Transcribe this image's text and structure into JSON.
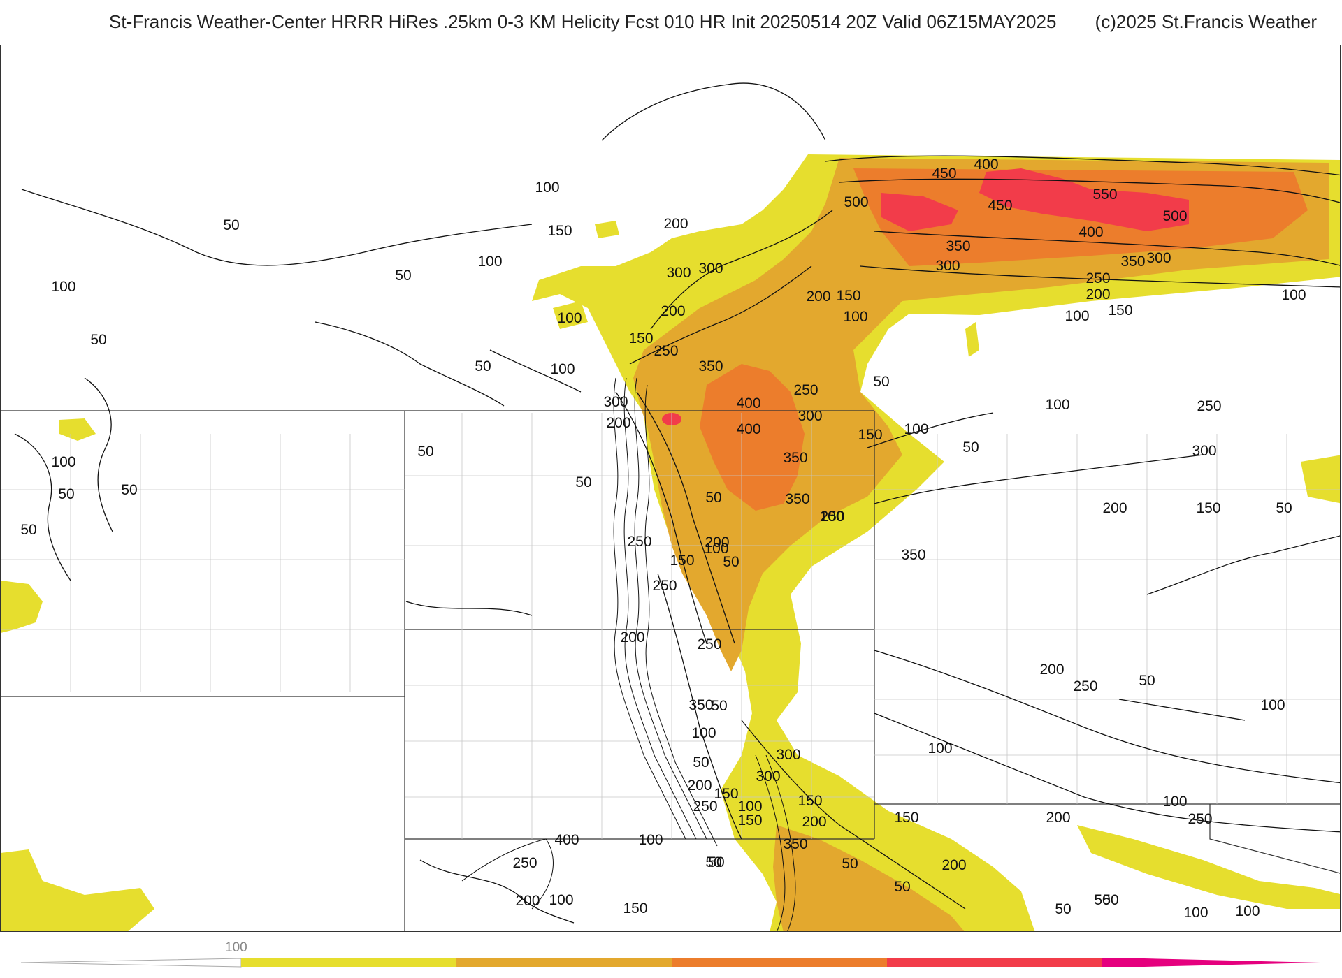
{
  "header": {
    "title": "St-Francis Weather-Center HRRR HiRes .25km 0-3 KM Helicity Fcst 010 HR Init 20250514 20Z  Valid 06Z15MAY2025",
    "copyright": "(c)2025 St.Francis Weather"
  },
  "colorbar": {
    "tick_label": "100",
    "colors": [
      "#e6de2e",
      "#e3a82e",
      "#ec7d2c",
      "#f23c4a",
      "#e5007e"
    ]
  },
  "map": {
    "contour_labels": [
      "50",
      "100",
      "150",
      "200",
      "250",
      "300",
      "350",
      "400",
      "450",
      "500",
      "550"
    ],
    "labels": [
      "100",
      "150",
      "200",
      "300",
      "400",
      "450",
      "500",
      "450",
      "550",
      "500",
      "400",
      "350",
      "300",
      "350",
      "300",
      "250",
      "200",
      "150",
      "100",
      "100",
      "50",
      "100",
      "50",
      "100",
      "50",
      "100",
      "150",
      "200",
      "250",
      "300",
      "350",
      "200",
      "150",
      "100",
      "50",
      "100",
      "300",
      "200",
      "400",
      "250",
      "300",
      "400",
      "350",
      "250",
      "50",
      "100",
      "150",
      "50",
      "50",
      "100",
      "50",
      "50",
      "50",
      "50",
      "50",
      "250",
      "350",
      "100",
      "350",
      "200",
      "50",
      "150",
      "100",
      "250",
      "300",
      "200",
      "150",
      "50",
      "50",
      "200",
      "250",
      "100",
      "100",
      "50",
      "50",
      "150",
      "250",
      "300",
      "150",
      "200",
      "350",
      "200",
      "250",
      "100",
      "300",
      "350",
      "250",
      "100",
      "200",
      "150",
      "50",
      "200",
      "150",
      "100",
      "200",
      "250",
      "400",
      "50",
      "100",
      "100",
      "50",
      "50",
      "250",
      "200",
      "100",
      "150",
      "50",
      "50",
      "50",
      "100",
      "100"
    ]
  }
}
